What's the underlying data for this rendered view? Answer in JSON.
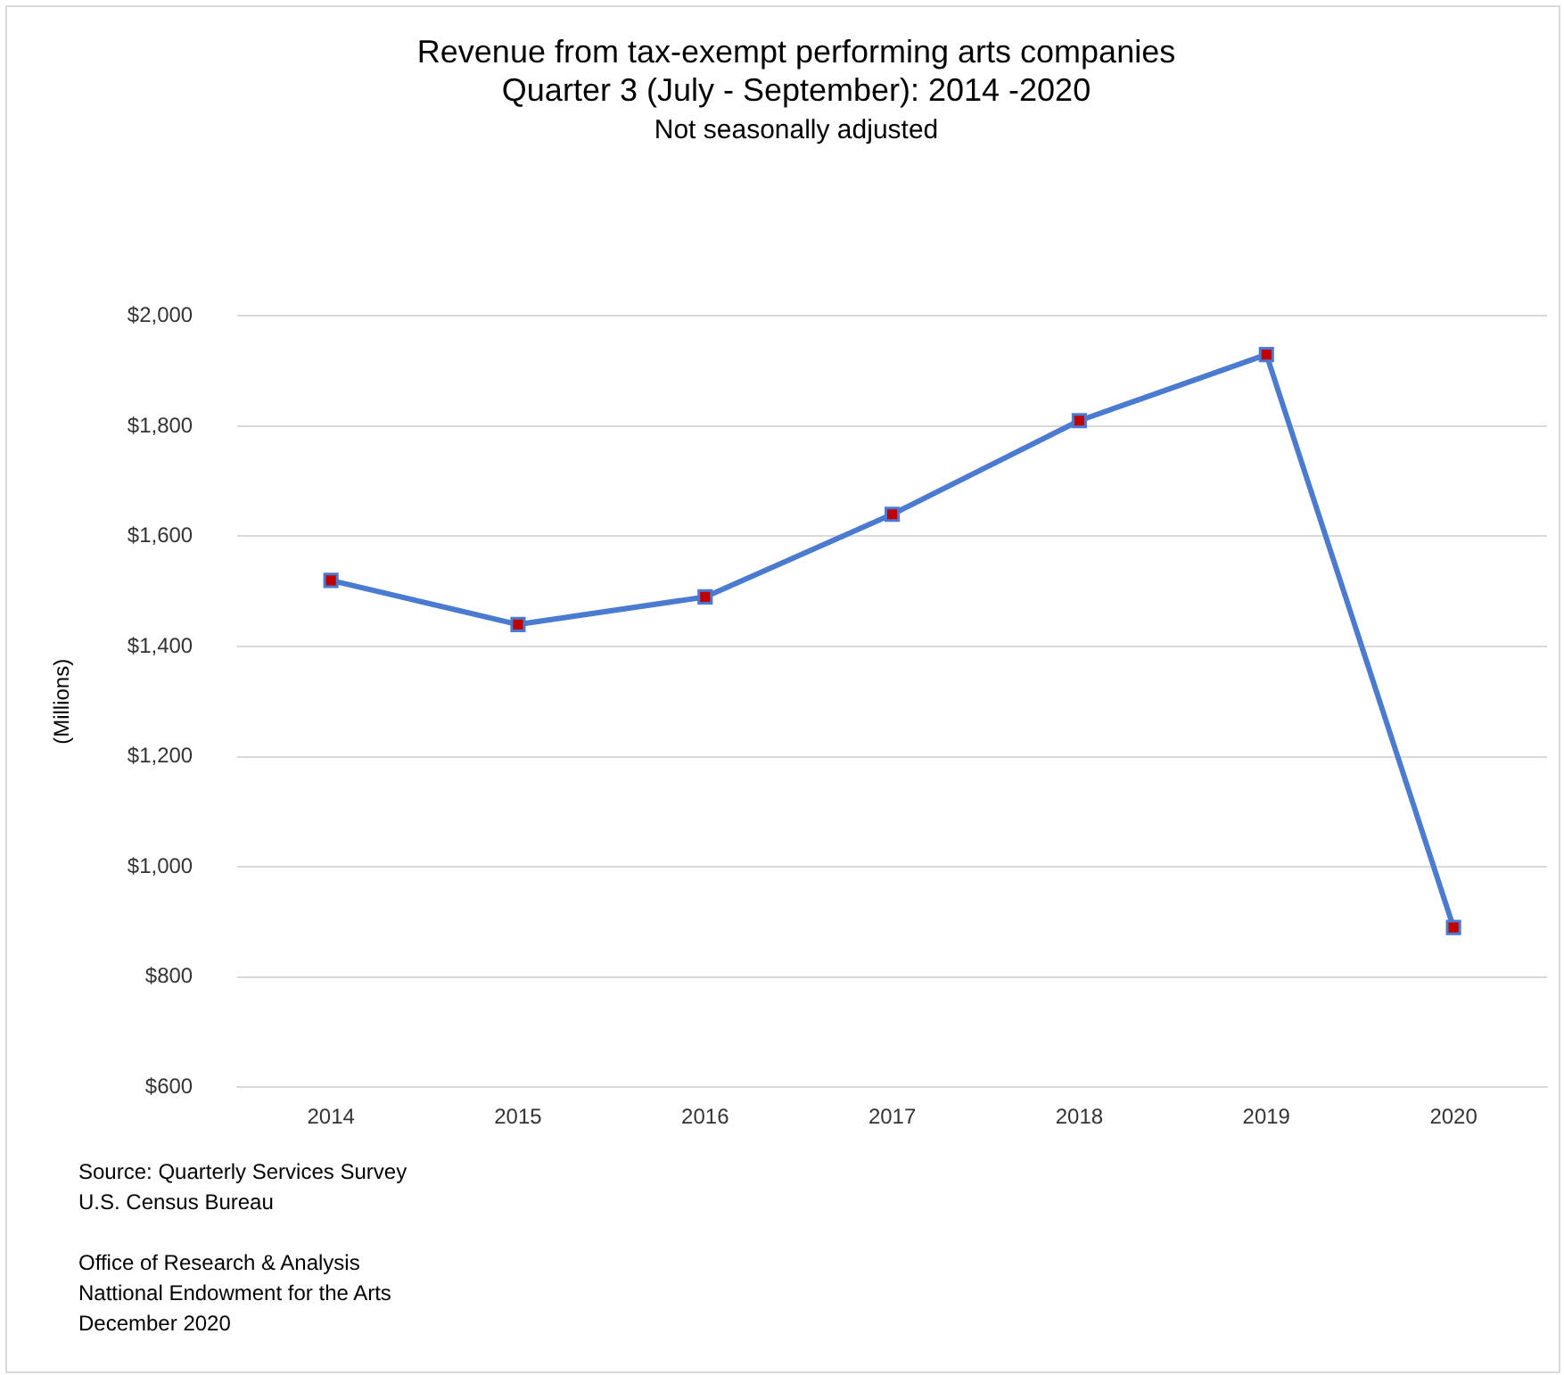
{
  "chart_data": {
    "type": "line",
    "title": "Revenue from tax-exempt performing arts companies\nQuarter 3 (July - September): 2014 -2020",
    "subtitle": "Not seasonally adjusted",
    "ylabel": "(Millions)",
    "categories": [
      "2014",
      "2015",
      "2016",
      "2017",
      "2018",
      "2019",
      "2020"
    ],
    "series": [
      {
        "color": "#4a7bd0",
        "colors": [
          "#c00000",
          "#c00000",
          "#c00000",
          "#c00000",
          "#c00000",
          "#c00000",
          "#c00000"
        ],
        "values": [
          1520,
          1440,
          1490,
          1640,
          1810,
          1930,
          890
        ]
      }
    ],
    "ylim": [
      600,
      2000
    ],
    "yticks": [
      {
        "value": 600,
        "label": "$600"
      },
      {
        "value": 800,
        "label": "$800"
      },
      {
        "value": 1000,
        "label": "$1,000"
      },
      {
        "value": 1200,
        "label": "$1,200"
      },
      {
        "value": 1400,
        "label": "$1,400"
      },
      {
        "value": 1600,
        "label": "$1,600"
      },
      {
        "value": 1800,
        "label": "$1,800"
      },
      {
        "value": 2000,
        "label": "$2,000"
      }
    ],
    "grid": "y",
    "legend": false,
    "marker": "square",
    "line_style": "solid",
    "annotations": [
      "Source: Quarterly Services Survey\nU.S. Census Bureau",
      "Office of Research & Analysis\nNattional Endowment for the Arts\nDecember 2020"
    ]
  }
}
